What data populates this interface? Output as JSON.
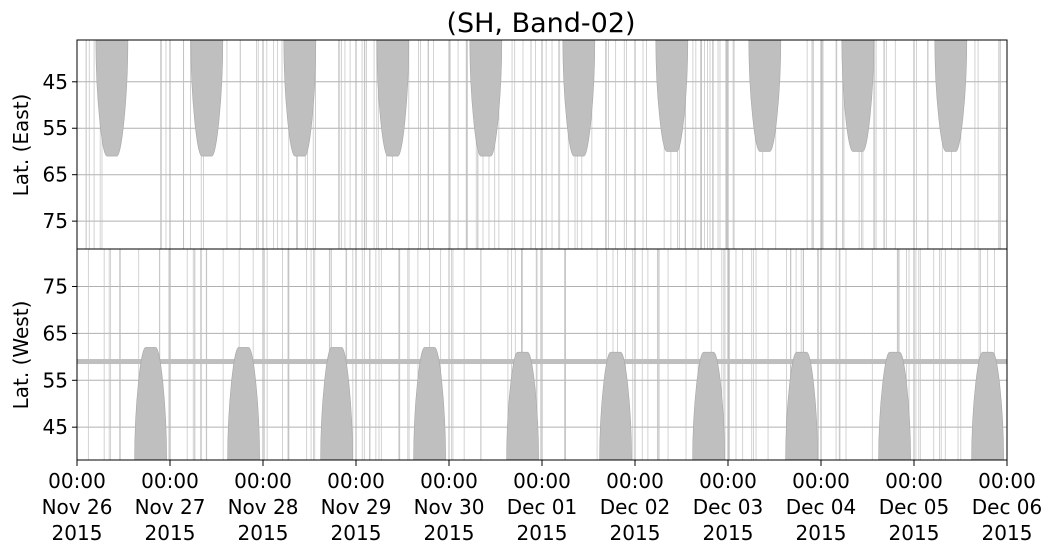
{
  "chart_data": {
    "type": "timeline-scatter",
    "title": "(SH, Band-02)",
    "x_axis": {
      "range": [
        "2015-11-26T00:00",
        "2015-12-06T00:00"
      ],
      "ticks": [
        {
          "time": "00:00",
          "date": "Nov 26",
          "year": "2015"
        },
        {
          "time": "00:00",
          "date": "Nov 27",
          "year": "2015"
        },
        {
          "time": "00:00",
          "date": "Nov 28",
          "year": "2015"
        },
        {
          "time": "00:00",
          "date": "Nov 29",
          "year": "2015"
        },
        {
          "time": "00:00",
          "date": "Nov 30",
          "year": "2015"
        },
        {
          "time": "00:00",
          "date": "Dec 01",
          "year": "2015"
        },
        {
          "time": "00:00",
          "date": "Dec 02",
          "year": "2015"
        },
        {
          "time": "00:00",
          "date": "Dec 03",
          "year": "2015"
        },
        {
          "time": "00:00",
          "date": "Dec 04",
          "year": "2015"
        },
        {
          "time": "00:00",
          "date": "Dec 05",
          "year": "2015"
        },
        {
          "time": "00:00",
          "date": "Dec 06",
          "year": "2015"
        }
      ],
      "grid": true
    },
    "panels": [
      {
        "name": "east",
        "ylabel": "Lat. (East)",
        "ylim": [
          36,
          81
        ],
        "y_inverted": true,
        "yticks": [
          45,
          55,
          65,
          75
        ],
        "grid": true,
        "color": "#bfbfbf",
        "lobes": [
          {
            "center": "2015-11-26T09:00",
            "extreme_lat": 61
          },
          {
            "center": "2015-11-27T09:30",
            "extreme_lat": 61
          },
          {
            "center": "2015-11-28T09:30",
            "extreme_lat": 61
          },
          {
            "center": "2015-11-29T09:30",
            "extreme_lat": 61
          },
          {
            "center": "2015-11-30T09:30",
            "extreme_lat": 61
          },
          {
            "center": "2015-12-01T09:30",
            "extreme_lat": 61
          },
          {
            "center": "2015-12-02T09:30",
            "extreme_lat": 60
          },
          {
            "center": "2015-12-03T09:30",
            "extreme_lat": 60
          },
          {
            "center": "2015-12-04T09:30",
            "extreme_lat": 60
          },
          {
            "center": "2015-12-05T09:30",
            "extreme_lat": 60
          }
        ]
      },
      {
        "name": "west",
        "ylabel": "Lat. (West)",
        "ylim": [
          38,
          83
        ],
        "y_inverted": false,
        "yticks": [
          45,
          55,
          65,
          75
        ],
        "grid": true,
        "color": "#bfbfbf",
        "constant_band_lat": 59,
        "lobes": [
          {
            "center": "2015-11-26T19:00",
            "extreme_lat": 62
          },
          {
            "center": "2015-11-27T19:00",
            "extreme_lat": 62
          },
          {
            "center": "2015-11-28T19:00",
            "extreme_lat": 62
          },
          {
            "center": "2015-11-29T19:00",
            "extreme_lat": 62
          },
          {
            "center": "2015-11-30T19:00",
            "extreme_lat": 61
          },
          {
            "center": "2015-12-01T19:00",
            "extreme_lat": 61
          },
          {
            "center": "2015-12-02T19:00",
            "extreme_lat": 61
          },
          {
            "center": "2015-12-03T19:00",
            "extreme_lat": 61
          },
          {
            "center": "2015-12-04T19:00",
            "extreme_lat": 61
          },
          {
            "center": "2015-12-05T19:00",
            "extreme_lat": 61
          }
        ]
      }
    ]
  }
}
